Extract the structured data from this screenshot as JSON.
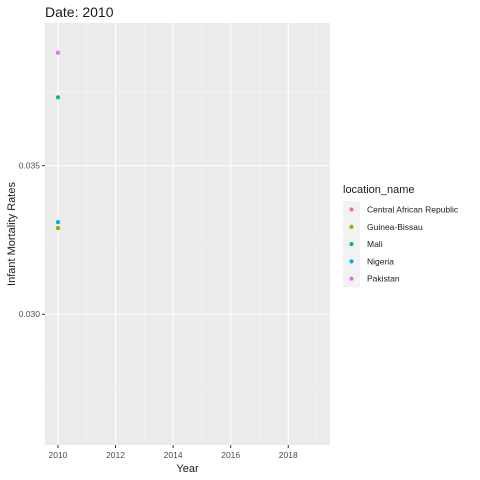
{
  "chart_data": {
    "type": "scatter",
    "title": "Date: 2010",
    "xlabel": "Year",
    "ylabel": "Infant Mortality Rates",
    "xlim": [
      2009.55,
      2019.45
    ],
    "ylim": [
      0.0256,
      0.0398
    ],
    "x_ticks": [
      2010,
      2012,
      2014,
      2016,
      2018
    ],
    "x_tick_labels": [
      "2010",
      "2012",
      "2014",
      "2016",
      "2018"
    ],
    "y_ticks": [
      0.03,
      0.035
    ],
    "y_tick_labels": [
      "0.030",
      "0.035"
    ],
    "grid": true,
    "legend": {
      "title": "location_name",
      "position": "right"
    },
    "series": [
      {
        "name": "Central African Republic",
        "color": "#F8766D",
        "x": [
          2010
        ],
        "y": [
          0.0329
        ]
      },
      {
        "name": "Guinea-Bissau",
        "color": "#A3A500",
        "x": [
          2010
        ],
        "y": [
          0.0329
        ]
      },
      {
        "name": "Mali",
        "color": "#00BF7D",
        "x": [
          2010
        ],
        "y": [
          0.0373
        ]
      },
      {
        "name": "Nigeria",
        "color": "#00B0F6",
        "x": [
          2010
        ],
        "y": [
          0.0331
        ]
      },
      {
        "name": "Pakistan",
        "color": "#E76BF3",
        "x": [
          2010
        ],
        "y": [
          0.0388
        ]
      }
    ]
  }
}
